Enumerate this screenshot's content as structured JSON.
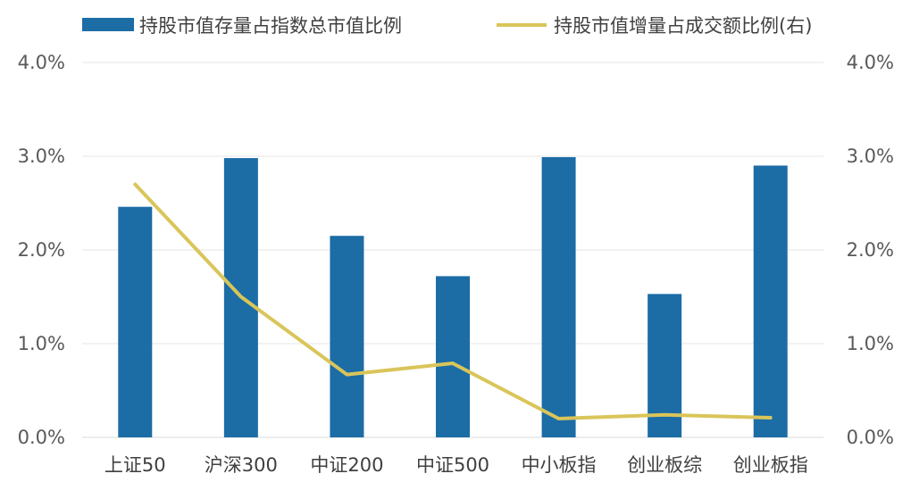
{
  "chart_data": {
    "type": "bar+line",
    "categories": [
      "上证50",
      "沪深300",
      "中证200",
      "中证500",
      "中小板指",
      "创业板综",
      "创业板指"
    ],
    "series": [
      {
        "name": "持股市值存量占指数总市值比例",
        "type": "bar",
        "axis": "left",
        "color": "#1c6ca6",
        "values": [
          2.46,
          2.98,
          2.15,
          1.72,
          2.99,
          1.53,
          2.9
        ]
      },
      {
        "name": "持股市值增量占成交额比例(右)",
        "type": "line",
        "axis": "right",
        "color": "#d9c55a",
        "values": [
          2.7,
          1.5,
          0.67,
          0.79,
          0.2,
          0.24,
          0.21
        ]
      }
    ],
    "ylim_left": [
      0,
      4
    ],
    "ylim_right": [
      0,
      4
    ],
    "y_ticks_left": [
      "0.0%",
      "1.0%",
      "2.0%",
      "3.0%",
      "4.0%"
    ],
    "y_ticks_right": [
      "0.0%",
      "1.0%",
      "2.0%",
      "3.0%",
      "4.0%"
    ],
    "grid": true,
    "legend_position": "top"
  }
}
